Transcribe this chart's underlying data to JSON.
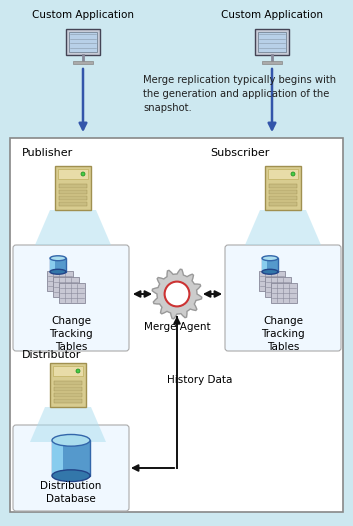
{
  "bg_color": "#cde8f0",
  "inner_bg": "#ffffff",
  "text_color": "#000000",
  "blue_arrow_color": "#3355aa",
  "dark_arrow_color": "#111111",
  "title_top_left": "Custom Application",
  "title_top_right": "Custom Application",
  "annotation_text": "Merge replication typically begins with\nthe generation and application of the\nsnapshot.",
  "label_publisher": "Publisher",
  "label_subscriber": "Subscriber",
  "label_distributor": "Distributor",
  "label_change_left": "Change\nTracking\nTables",
  "label_change_right": "Change\nTracking\nTables",
  "label_merge_agent": "Merge Agent",
  "label_history": "History Data",
  "label_dist_db": "Distribution\nDatabase",
  "fig_width": 3.53,
  "fig_height": 5.26,
  "dpi": 100
}
